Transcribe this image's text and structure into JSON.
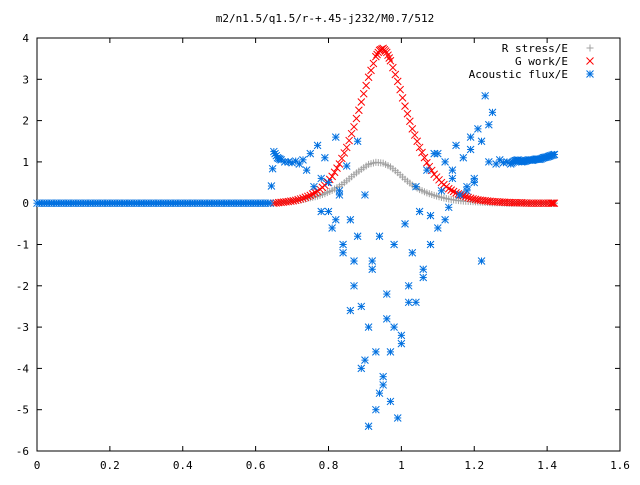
{
  "chart_data": {
    "type": "scatter",
    "title": "m2/n1.5/q1.5/r-+.45-j232/M0.7/512",
    "xlabel": "",
    "ylabel": "",
    "xlim": [
      0,
      1.6
    ],
    "ylim": [
      -6,
      4
    ],
    "xticks": [
      "0",
      "0.2",
      "0.4",
      "0.6",
      "0.8",
      "1",
      "1.2",
      "1.4",
      "1.6"
    ],
    "yticks": [
      "4",
      "3",
      "2",
      "1",
      "0",
      "-1",
      "-2",
      "-3",
      "-4",
      "-5",
      "-6"
    ],
    "grid": false,
    "legend_position": "top-right",
    "series": [
      {
        "name": "R stress/E",
        "marker": "plus",
        "color": "#a0a0a0",
        "x": [
          0.65,
          0.67,
          0.69,
          0.71,
          0.73,
          0.75,
          0.77,
          0.79,
          0.81,
          0.83,
          0.85,
          0.87,
          0.89,
          0.91,
          0.93,
          0.95,
          0.97,
          0.99,
          1.01,
          1.03,
          1.05,
          1.07,
          1.09,
          1.11,
          1.13,
          1.15,
          1.17,
          1.19,
          1.21,
          1.23,
          1.25,
          1.27,
          1.29,
          1.31,
          1.33,
          1.35,
          1.37,
          1.39,
          1.41,
          1.42
        ],
        "y": [
          0.0,
          0.02,
          0.04,
          0.06,
          0.09,
          0.13,
          0.17,
          0.23,
          0.31,
          0.41,
          0.54,
          0.69,
          0.82,
          0.94,
          0.99,
          0.97,
          0.88,
          0.74,
          0.58,
          0.44,
          0.33,
          0.25,
          0.19,
          0.14,
          0.1,
          0.07,
          0.05,
          0.04,
          0.03,
          0.02,
          0.01,
          0.01,
          0.0,
          0.0,
          0.0,
          0.0,
          0.0,
          0.0,
          0.0,
          0.0
        ]
      },
      {
        "name": "G work/E",
        "marker": "cross",
        "color": "#ff0000",
        "x": [
          0.65,
          0.67,
          0.69,
          0.71,
          0.73,
          0.75,
          0.77,
          0.79,
          0.81,
          0.83,
          0.85,
          0.87,
          0.89,
          0.91,
          0.93,
          0.94,
          0.95,
          0.96,
          0.97,
          0.99,
          1.01,
          1.03,
          1.05,
          1.07,
          1.09,
          1.11,
          1.13,
          1.15,
          1.17,
          1.19,
          1.21,
          1.23,
          1.25,
          1.27,
          1.29,
          1.31,
          1.33,
          1.35,
          1.37,
          1.39,
          1.41,
          1.42
        ],
        "y": [
          0.0,
          0.02,
          0.04,
          0.07,
          0.12,
          0.19,
          0.29,
          0.43,
          0.65,
          0.95,
          1.35,
          1.85,
          2.45,
          3.05,
          3.55,
          3.7,
          3.75,
          3.65,
          3.45,
          2.95,
          2.35,
          1.8,
          1.35,
          0.98,
          0.7,
          0.5,
          0.35,
          0.25,
          0.18,
          0.12,
          0.08,
          0.06,
          0.04,
          0.03,
          0.02,
          0.01,
          0.01,
          0.0,
          0.0,
          0.0,
          0.0,
          0.0
        ]
      },
      {
        "name": "Acoustic flux/E",
        "marker": "star",
        "color": "#0070e0",
        "x": [
          0.0,
          0.02,
          0.04,
          0.06,
          0.08,
          0.1,
          0.12,
          0.14,
          0.16,
          0.18,
          0.2,
          0.22,
          0.24,
          0.26,
          0.28,
          0.3,
          0.32,
          0.34,
          0.36,
          0.38,
          0.4,
          0.42,
          0.44,
          0.46,
          0.48,
          0.5,
          0.52,
          0.54,
          0.56,
          0.58,
          0.6,
          0.62,
          0.64,
          0.65,
          0.66,
          0.67,
          0.68,
          0.69,
          0.7,
          0.71,
          0.72,
          0.73,
          0.74,
          0.75,
          0.76,
          0.77,
          0.78,
          0.79,
          0.8,
          0.81,
          0.82,
          0.83,
          0.84,
          0.85,
          0.86,
          0.87,
          0.88,
          0.89,
          0.9,
          0.91,
          0.92,
          0.93,
          0.94,
          0.95,
          0.96,
          0.97,
          0.98,
          0.99,
          1.0,
          1.01,
          1.02,
          1.03,
          1.04,
          1.05,
          1.06,
          1.07,
          1.08,
          1.09,
          1.1,
          1.11,
          1.12,
          1.13,
          1.14,
          1.15,
          1.16,
          1.17,
          1.18,
          1.19,
          1.2,
          1.21,
          1.22,
          1.23,
          1.24,
          1.25,
          1.26,
          1.27,
          1.28,
          1.29,
          1.3,
          1.31,
          1.32,
          1.33,
          1.34,
          1.35,
          1.36,
          1.37,
          1.38,
          1.39,
          1.4,
          1.41,
          1.42,
          0.78,
          0.83,
          0.88,
          0.92,
          0.96,
          1.0,
          1.04,
          1.08,
          1.12,
          1.16,
          1.2,
          0.86,
          0.9,
          0.94,
          0.98,
          1.02,
          1.06,
          0.89,
          0.93,
          0.97,
          0.91,
          0.95,
          0.8,
          0.84,
          1.1,
          1.14,
          1.18,
          1.22,
          1.24,
          1.19,
          0.82,
          0.87
        ],
        "y": [
          0,
          0,
          0,
          0,
          0,
          0,
          0,
          0,
          0,
          0,
          0,
          0,
          0,
          0,
          0,
          0,
          0,
          0,
          0,
          0,
          0,
          0,
          0,
          0,
          0,
          0,
          0,
          0,
          0,
          0,
          0,
          0,
          0,
          1.25,
          1.1,
          1.05,
          1.0,
          1.0,
          0.98,
          1.02,
          0.95,
          1.05,
          0.8,
          1.2,
          0.4,
          1.4,
          -0.2,
          1.1,
          0.5,
          -0.6,
          1.6,
          0.3,
          -1.2,
          0.9,
          -0.4,
          -2.0,
          1.5,
          -2.5,
          0.2,
          -3.0,
          -1.6,
          -3.6,
          -0.8,
          -4.2,
          -2.2,
          -4.8,
          -1.0,
          -5.2,
          -3.4,
          -0.5,
          -2.4,
          -1.2,
          0.4,
          -0.2,
          -1.6,
          0.8,
          -0.3,
          1.2,
          -0.6,
          0.3,
          1.0,
          -0.1,
          0.6,
          1.4,
          0.2,
          1.1,
          0.4,
          1.6,
          0.5,
          1.8,
          -1.4,
          2.6,
          1.0,
          2.2,
          0.95,
          1.05,
          0.98,
          1.0,
          0.95,
          1.02,
          1.05,
          1.0,
          1.02,
          1.05,
          1.04,
          1.07,
          1.06,
          1.1,
          1.12,
          1.15,
          1.18,
          0.6,
          0.2,
          -0.8,
          -1.4,
          -2.8,
          -3.2,
          -2.4,
          -1.0,
          -0.4,
          0.2,
          0.6,
          -2.6,
          -3.8,
          -4.6,
          -3.0,
          -2.0,
          -1.8,
          -4.0,
          -5.0,
          -3.6,
          -5.4,
          -4.4,
          -0.2,
          -1.0,
          1.2,
          0.8,
          0.3,
          1.5,
          1.9,
          1.3,
          -0.4,
          -1.4
        ]
      }
    ]
  }
}
